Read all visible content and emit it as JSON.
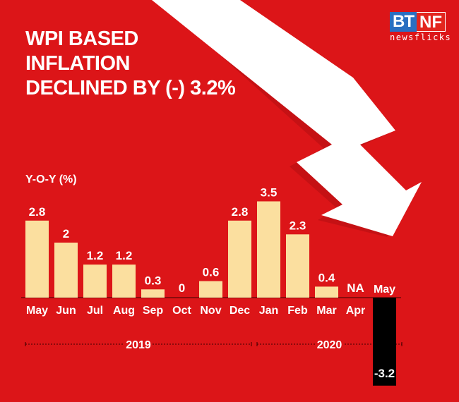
{
  "headline": [
    "WPI BASED",
    "INFLATION",
    "DECLINED BY (-) 3.2%"
  ],
  "logo": {
    "left": "BT",
    "right": "NF",
    "tagline": "newsflicks"
  },
  "colors": {
    "background": "#dc1518",
    "bar": "#fbdf9f",
    "negative_bar": "#000000",
    "logo_blue": "#2a6fc1"
  },
  "chart_data": {
    "type": "bar",
    "ylabel": "Y-O-Y (%)",
    "categories": [
      "May",
      "Jun",
      "Jul",
      "Aug",
      "Sep",
      "Oct",
      "Nov",
      "Dec",
      "Jan",
      "Feb",
      "Mar",
      "Apr",
      "May"
    ],
    "values": [
      2.8,
      2,
      1.2,
      1.2,
      0.3,
      0,
      0.6,
      2.8,
      3.5,
      2.3,
      0.4,
      null,
      -3.2
    ],
    "data_labels": [
      "2.8",
      "2",
      "1.2",
      "1.2",
      "0.3",
      "0",
      "0.6",
      "2.8",
      "3.5",
      "2.3",
      "0.4",
      "NA",
      "-3.2"
    ],
    "year_groups": [
      {
        "label": "2019",
        "from": "May",
        "to": "Dec"
      },
      {
        "label": "2020",
        "from": "Jan",
        "to": "May"
      }
    ],
    "grid": false,
    "decoration": "white downward arrow"
  }
}
